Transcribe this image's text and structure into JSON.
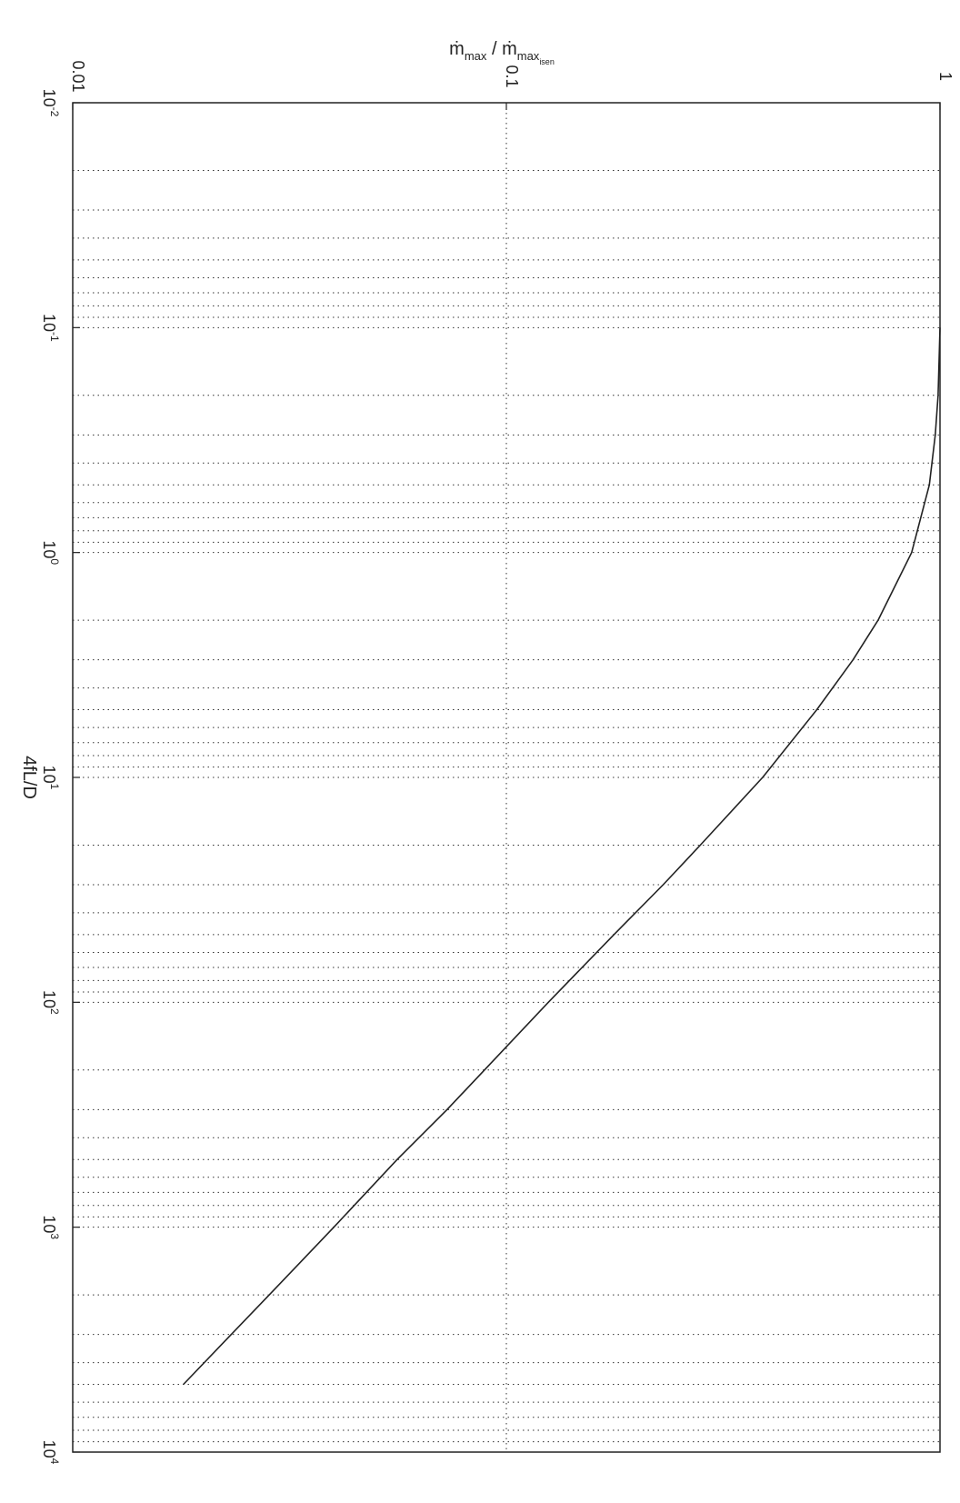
{
  "chart_data": {
    "type": "line",
    "orientation": "rotated-90",
    "xscale": "log",
    "yscale": "log",
    "xlim": [
      0.01,
      10000
    ],
    "ylim": [
      0.01,
      1
    ],
    "xlabel": "4fL/D",
    "ylabel": {
      "base": "ṁ",
      "sub_num": "max",
      "sep": " / ",
      "sub_den": "max",
      "sub_den_sub": "isen"
    },
    "x_ticks": [
      {
        "base": "10",
        "exp": "-2"
      },
      {
        "base": "10",
        "exp": "-1"
      },
      {
        "base": "10",
        "exp": "0"
      },
      {
        "base": "10",
        "exp": "1"
      },
      {
        "base": "10",
        "exp": "2"
      },
      {
        "base": "10",
        "exp": "3"
      },
      {
        "base": "10",
        "exp": "4"
      }
    ],
    "y_ticks": [
      "0.01",
      "0.1",
      "1"
    ],
    "grid": true,
    "series": [
      {
        "x": [
          0.1,
          0.2,
          0.3,
          0.5,
          1,
          2,
          3,
          5,
          10,
          20,
          30,
          50,
          100,
          200,
          300,
          500,
          1000,
          2000,
          3000,
          5000
        ],
        "y": [
          1.0,
          0.99,
          0.975,
          0.945,
          0.86,
          0.72,
          0.63,
          0.52,
          0.39,
          0.28,
          0.23,
          0.177,
          0.125,
          0.089,
          0.073,
          0.056,
          0.04,
          0.0284,
          0.0232,
          0.018
        ]
      }
    ]
  }
}
